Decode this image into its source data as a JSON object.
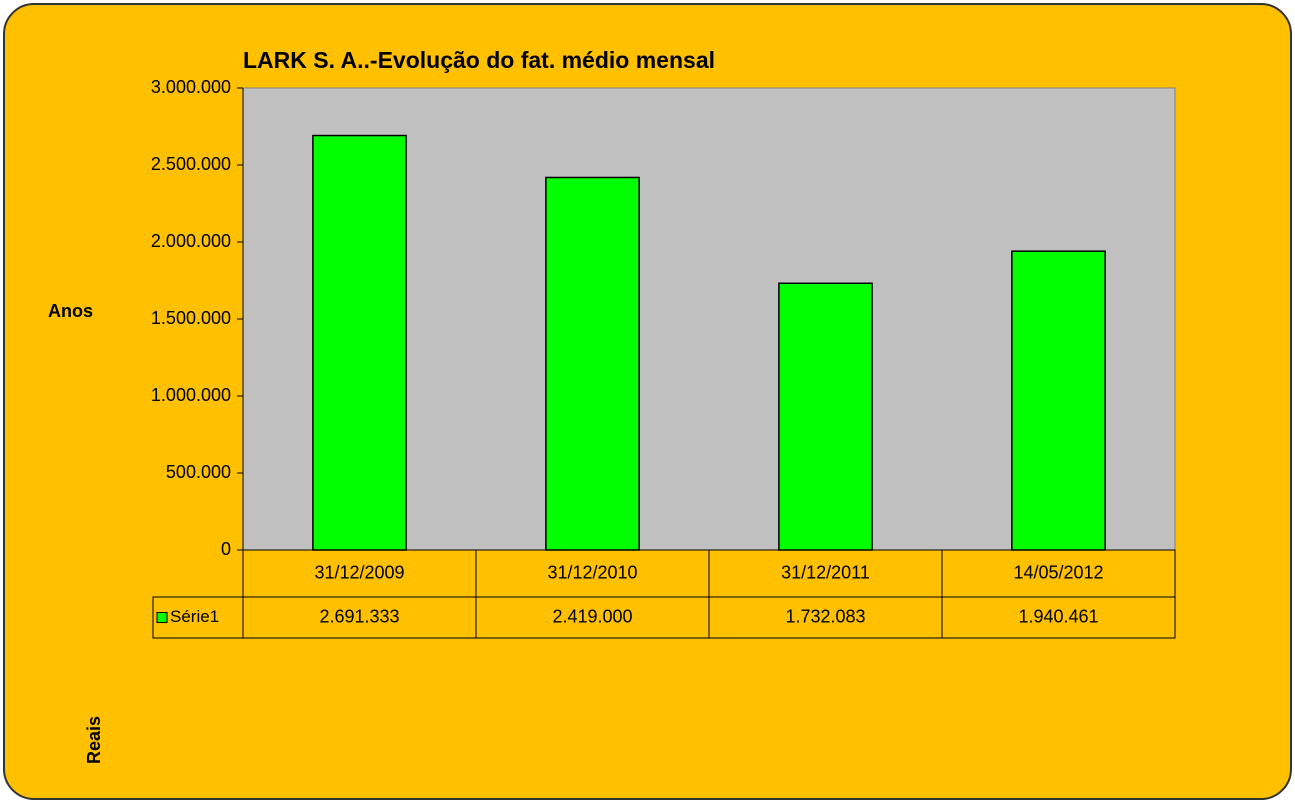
{
  "chart_data": {
    "type": "bar",
    "title": "LARK S. A..-Evolução do fat. médio mensal",
    "y_label": "Anos",
    "x_label": "Reais",
    "categories": [
      "31/12/2009",
      "31/12/2010",
      "31/12/2011",
      "14/05/2012"
    ],
    "series": [
      {
        "name": "Série1",
        "color": "#00ff00",
        "values": [
          2691333,
          2419000,
          1732083,
          1940461
        ],
        "value_labels": [
          "2.691.333",
          "2.419.000",
          "1.732.083",
          "1.940.461"
        ]
      }
    ],
    "ylim": [
      0,
      3000000
    ],
    "yticks": [
      0,
      {
        "value": 500000,
        "label": "500.000"
      },
      {
        "value": 1000000,
        "label": "1.000.000"
      },
      {
        "value": 1500000,
        "label": "1.500.000"
      },
      {
        "value": 2000000,
        "label": "2.000.000"
      },
      {
        "value": 2500000,
        "label": "2.500.000"
      },
      {
        "value": 3000000,
        "label": "3.000.000"
      }
    ],
    "grid": false
  }
}
